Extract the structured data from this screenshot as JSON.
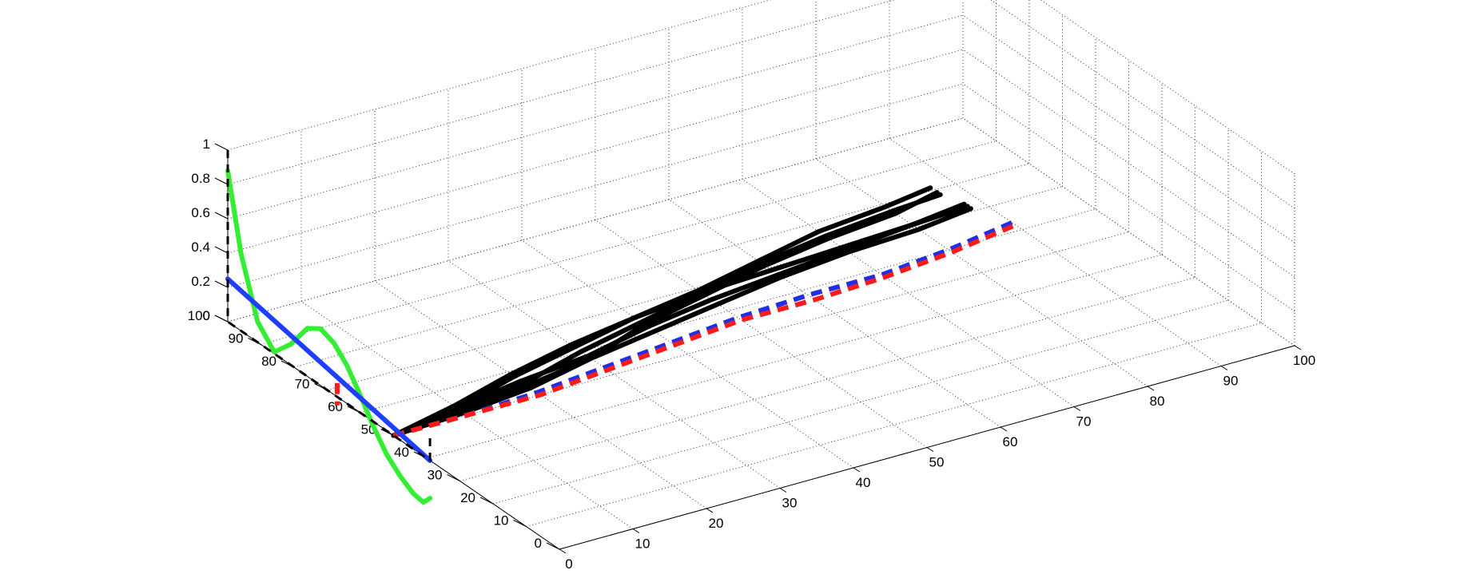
{
  "chart_data": {
    "type": "line3d",
    "title": "",
    "xlabel": "",
    "ylabel": "",
    "zlabel": "",
    "xlim": [
      0,
      100
    ],
    "ylim": [
      0,
      100
    ],
    "zlim": [
      0,
      1
    ],
    "x_ticks": [
      "0",
      "10",
      "20",
      "30",
      "40",
      "50",
      "60",
      "70",
      "80",
      "90",
      "100"
    ],
    "y_ticks": [
      "0",
      "10",
      "20",
      "30",
      "40",
      "50",
      "60",
      "70",
      "80",
      "90",
      "100"
    ],
    "z_ticks": [
      "0",
      "0.2",
      "0.4",
      "0.6",
      "0.8",
      "1"
    ],
    "grid": true,
    "colors": {
      "trajectories": "#000000",
      "mean": "#1f2fe6",
      "predicted": "#ff1a1a",
      "weight_function": "#33ee33",
      "linear_weight": "#1f3fff",
      "guides": "#000000"
    },
    "series": [
      {
        "style": "solid",
        "color": "#000000",
        "points": [
          [
            0,
            50,
            0
          ],
          [
            10,
            52,
            0
          ],
          [
            20,
            55,
            0
          ],
          [
            30,
            60,
            0
          ],
          [
            40,
            64,
            0
          ],
          [
            50,
            68,
            0
          ],
          [
            60,
            72,
            0
          ],
          [
            70,
            75,
            0
          ],
          [
            80,
            77,
            0
          ],
          [
            87,
            78,
            0
          ]
        ]
      },
      {
        "style": "solid",
        "color": "#000000",
        "points": [
          [
            0,
            50,
            0
          ],
          [
            10,
            54,
            0
          ],
          [
            20,
            59,
            0
          ],
          [
            30,
            63,
            0
          ],
          [
            40,
            66,
            0
          ],
          [
            50,
            69,
            0
          ],
          [
            60,
            73,
            0
          ],
          [
            70,
            77,
            0
          ],
          [
            80,
            79,
            0
          ],
          [
            87,
            81,
            0
          ]
        ]
      },
      {
        "style": "solid",
        "color": "#000000",
        "points": [
          [
            0,
            50,
            0
          ],
          [
            10,
            53,
            0
          ],
          [
            20,
            58,
            0
          ],
          [
            30,
            62,
            0
          ],
          [
            40,
            66,
            0
          ],
          [
            50,
            68,
            0
          ],
          [
            60,
            69,
            0
          ],
          [
            70,
            70,
            0
          ],
          [
            80,
            71,
            0
          ],
          [
            88,
            73,
            0
          ]
        ]
      },
      {
        "style": "solid",
        "color": "#000000",
        "points": [
          [
            0,
            50,
            0
          ],
          [
            10,
            53,
            0
          ],
          [
            20,
            56,
            0
          ],
          [
            30,
            58,
            0
          ],
          [
            40,
            62,
            0
          ],
          [
            50,
            65,
            0
          ],
          [
            60,
            67,
            0
          ],
          [
            70,
            69,
            0
          ],
          [
            80,
            71,
            0
          ],
          [
            88,
            72,
            0
          ]
        ]
      },
      {
        "style": "solid",
        "color": "#000000",
        "points": [
          [
            0,
            50,
            0
          ],
          [
            10,
            51,
            0
          ],
          [
            20,
            53,
            0
          ],
          [
            30,
            57,
            0
          ],
          [
            40,
            60,
            0
          ],
          [
            50,
            63,
            0
          ],
          [
            60,
            66,
            0
          ],
          [
            70,
            68,
            0
          ],
          [
            80,
            69,
            0
          ],
          [
            88,
            71,
            0
          ]
        ]
      },
      {
        "style": "solid",
        "color": "#000000",
        "points": [
          [
            0,
            50,
            0
          ],
          [
            10,
            52,
            0
          ],
          [
            20,
            54,
            0
          ],
          [
            30,
            57,
            0
          ],
          [
            40,
            63,
            0
          ],
          [
            50,
            67,
            0
          ],
          [
            60,
            71,
            0
          ],
          [
            70,
            74,
            0
          ],
          [
            80,
            76,
            0
          ],
          [
            87,
            79,
            0
          ]
        ]
      },
      {
        "style": "dashed",
        "color": "#1f2fe6",
        "points": [
          [
            0,
            50,
            0
          ],
          [
            10,
            50,
            0
          ],
          [
            20,
            51,
            0
          ],
          [
            30,
            53,
            0
          ],
          [
            40,
            55,
            0
          ],
          [
            50,
            57,
            0
          ],
          [
            60,
            58,
            0
          ],
          [
            70,
            58,
            0
          ],
          [
            80,
            60,
            0
          ],
          [
            90,
            63,
            0
          ]
        ]
      },
      {
        "style": "dashed",
        "color": "#ff1a1a",
        "points": [
          [
            0,
            50,
            0
          ],
          [
            10,
            50,
            0
          ],
          [
            20,
            50,
            0
          ],
          [
            30,
            52,
            0
          ],
          [
            40,
            54,
            0
          ],
          [
            50,
            56,
            0
          ],
          [
            60,
            56,
            0
          ],
          [
            70,
            57,
            0
          ],
          [
            80,
            59,
            0
          ],
          [
            90,
            62,
            0
          ]
        ]
      },
      {
        "style": "solid",
        "color": "#33ee33",
        "points": [
          [
            0,
            100,
            0.88
          ],
          [
            0,
            96,
            0.45
          ],
          [
            0,
            91,
            0.12
          ],
          [
            0,
            86,
            0.01
          ],
          [
            0,
            81,
            0.12
          ],
          [
            0,
            76,
            0.28
          ],
          [
            0,
            72,
            0.33
          ],
          [
            0,
            68,
            0.3
          ],
          [
            0,
            64,
            0.22
          ],
          [
            0,
            60,
            0.1
          ],
          [
            0,
            56,
            -0.03
          ],
          [
            0,
            52,
            -0.14
          ],
          [
            0,
            48,
            -0.21
          ],
          [
            0,
            44,
            -0.26
          ],
          [
            0,
            41,
            -0.27
          ],
          [
            0,
            39,
            -0.22
          ]
        ]
      },
      {
        "style": "solid",
        "color": "#1f3fff",
        "points": [
          [
            0,
            100,
            0.25
          ],
          [
            0,
            39,
            0
          ]
        ]
      },
      {
        "style": "dashed",
        "color": "#000000",
        "points": [
          [
            0,
            100,
            1
          ],
          [
            0,
            100,
            0
          ],
          [
            0,
            39,
            0
          ],
          [
            0,
            39,
            0.15
          ]
        ]
      },
      {
        "style": "dashed",
        "color": "#ff1a1a",
        "points": [
          [
            0,
            67,
            0.08
          ],
          [
            0,
            67,
            -0.05
          ]
        ]
      }
    ]
  }
}
